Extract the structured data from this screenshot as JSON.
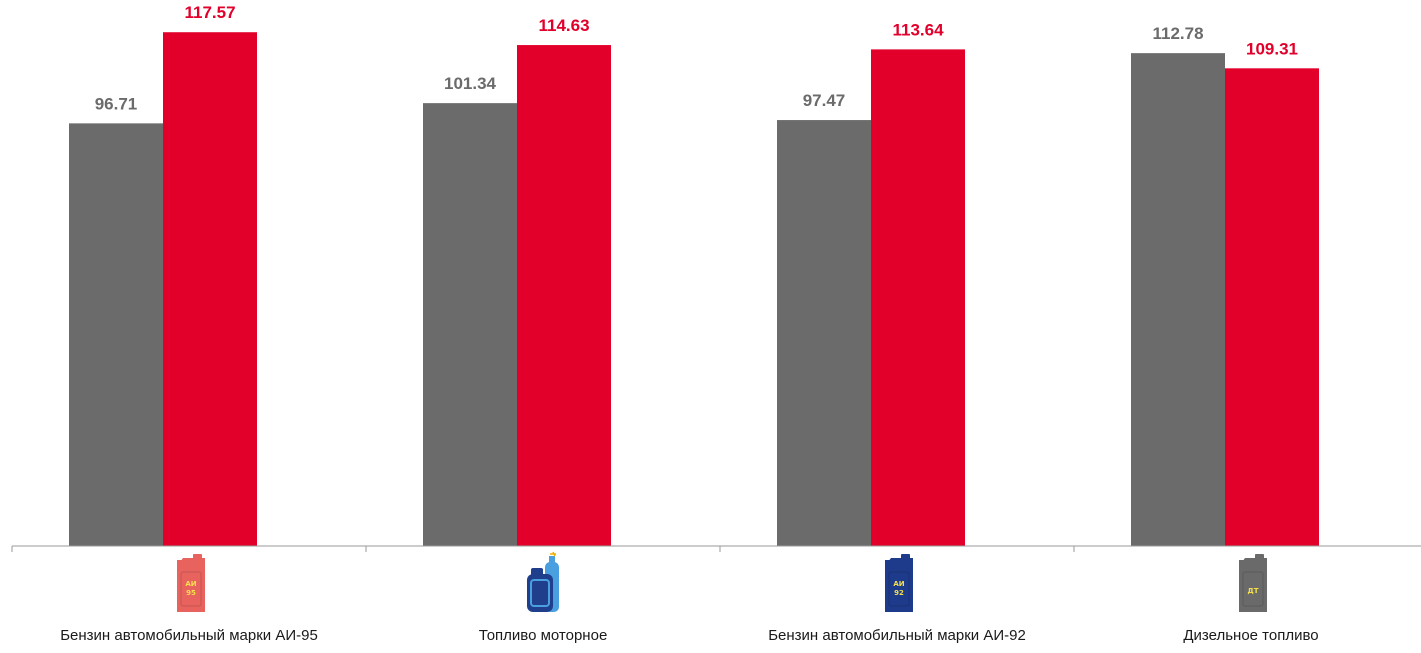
{
  "chart_data": {
    "type": "bar",
    "title": "",
    "xlabel": "",
    "ylabel": "",
    "ylim": [
      0,
      120
    ],
    "grid": false,
    "legend": "none",
    "categories": [
      "Бензин автомобильный марки АИ-95",
      "Топливо моторное",
      "Бензин автомобильный марки АИ-92",
      "Дизельное топливо"
    ],
    "series": [
      {
        "color": "#6b6b6b",
        "values": [
          96.71,
          101.34,
          97.47,
          112.78
        ]
      },
      {
        "color": "#e2002b",
        "values": [
          117.57,
          114.63,
          113.64,
          109.31
        ]
      }
    ],
    "value_labels": [
      [
        "96.71",
        "101.34",
        "97.47",
        "112.78"
      ],
      [
        "117.57",
        "114.63",
        "113.64",
        "109.31"
      ]
    ]
  },
  "icons": [
    {
      "name": "canister-ai95-icon",
      "text": [
        "АИ",
        "95"
      ],
      "body_color": "#e8635e",
      "text_color": "#f5e04a"
    },
    {
      "name": "motor-fuel-canister-icon",
      "text": [],
      "body_color": "#1f3f8c",
      "text_color": "#4a9fe0"
    },
    {
      "name": "canister-ai92-icon",
      "text": [
        "АИ",
        "92"
      ],
      "body_color": "#1e3a8a",
      "text_color": "#f5e04a"
    },
    {
      "name": "canister-diesel-icon",
      "text": [
        "ДТ"
      ],
      "body_color": "#6a6a6a",
      "text_color": "#f5e04a"
    }
  ]
}
